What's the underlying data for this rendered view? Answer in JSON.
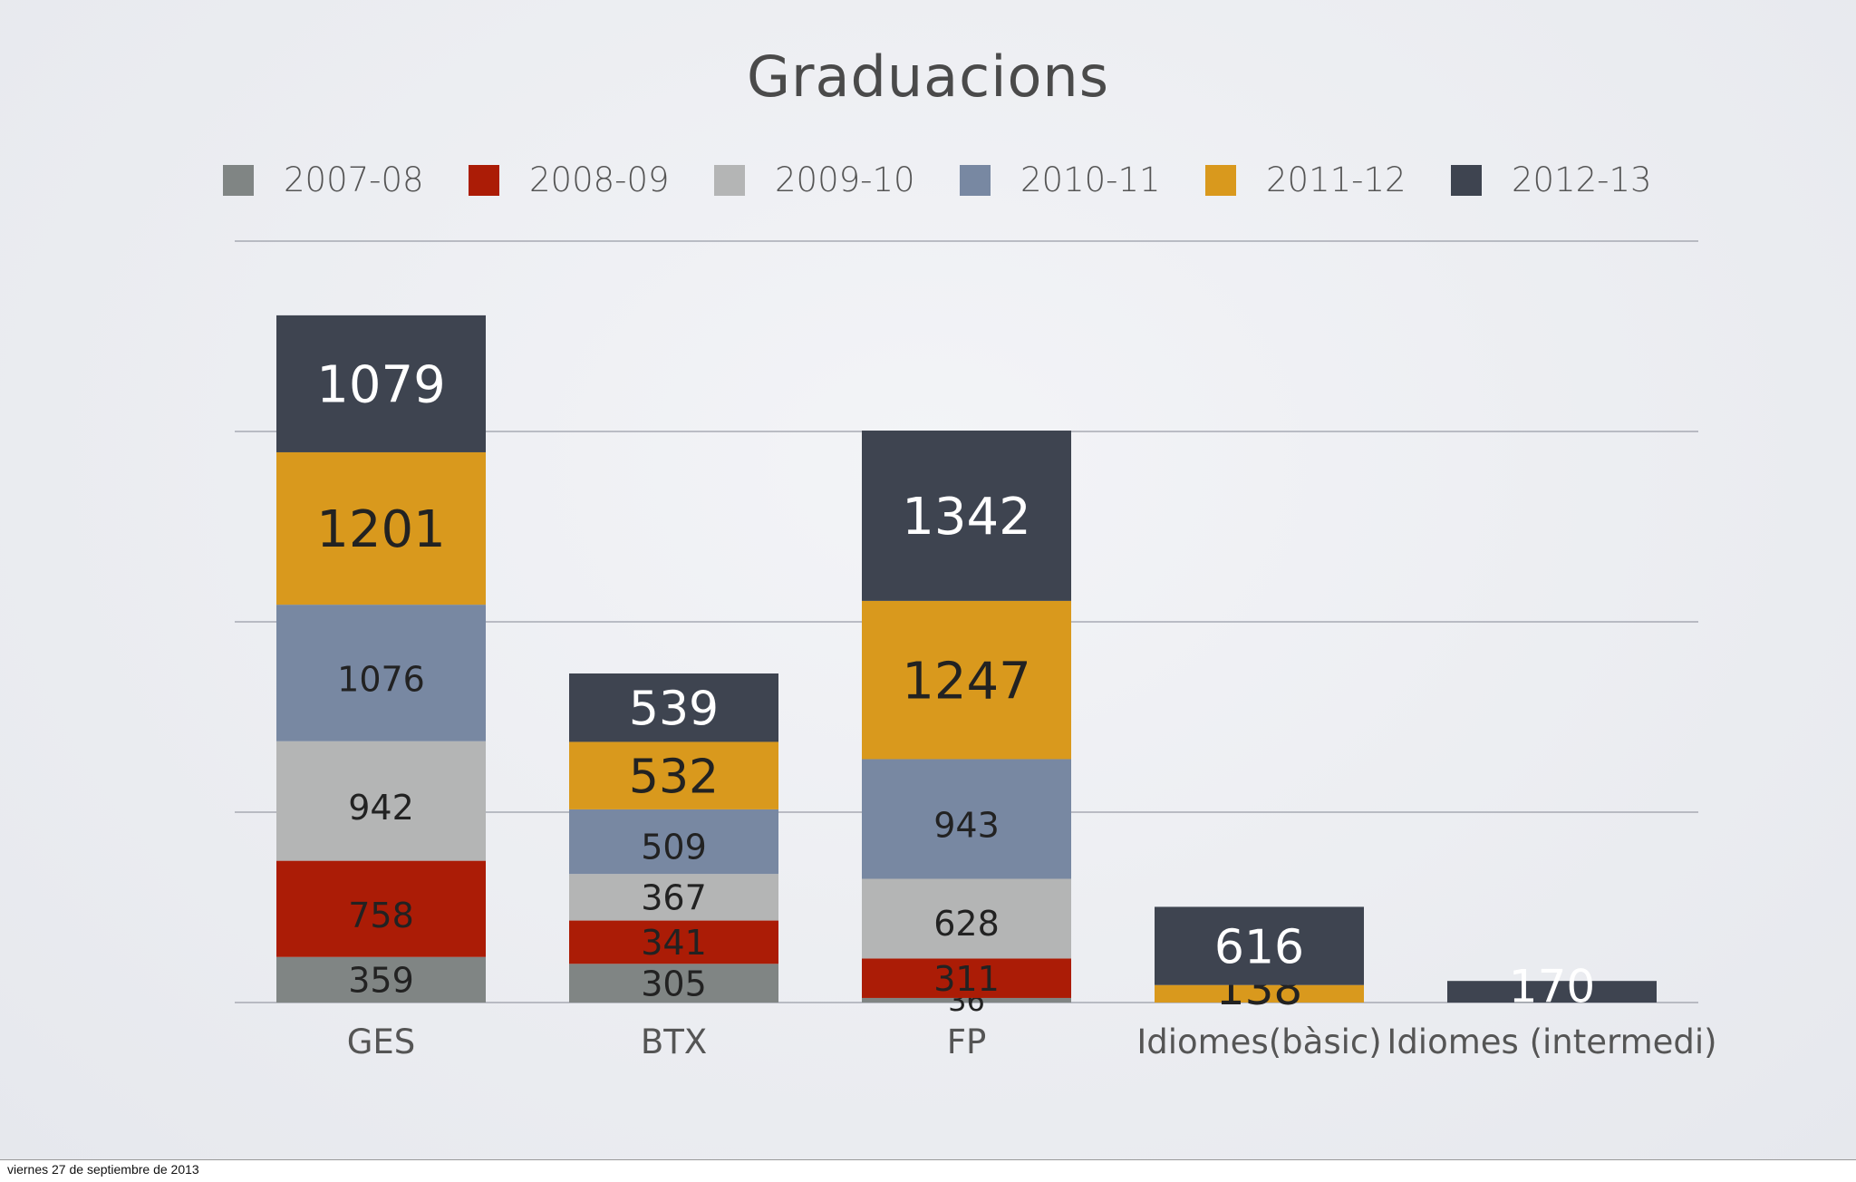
{
  "footer_date": "viernes 27 de septiembre de 2013",
  "chart_data": {
    "type": "bar",
    "stacked": true,
    "title": "Graduacions",
    "categories": [
      "GES",
      "BTX",
      "FP",
      "Idiomes(bàsic)",
      "Idiomes (intermedi)"
    ],
    "series": [
      {
        "name": "2007-08",
        "color": "#808584",
        "values": [
          359,
          305,
          36,
          0,
          0
        ]
      },
      {
        "name": "2008-09",
        "color": "#ab1c06",
        "values": [
          758,
          341,
          311,
          0,
          0
        ]
      },
      {
        "name": "2009-10",
        "color": "#b4b5b5",
        "values": [
          942,
          367,
          628,
          0,
          0
        ]
      },
      {
        "name": "2010-11",
        "color": "#7888a2",
        "values": [
          1076,
          509,
          943,
          0,
          0
        ]
      },
      {
        "name": "2011-12",
        "color": "#d9991d",
        "values": [
          1201,
          532,
          1247,
          138,
          0
        ]
      },
      {
        "name": "2012-13",
        "color": "#3e4450",
        "values": [
          1079,
          539,
          1342,
          616,
          170
        ]
      }
    ],
    "ylim": [
      0,
      6000
    ],
    "grid": true,
    "legend_position": "top"
  }
}
